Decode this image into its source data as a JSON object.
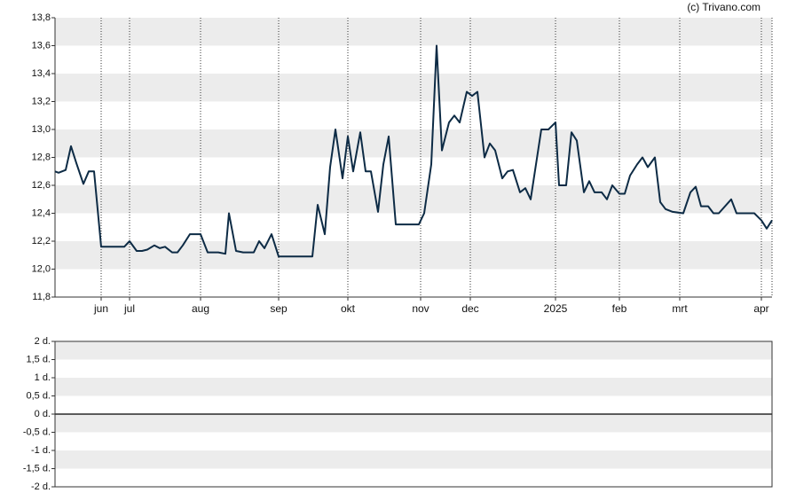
{
  "chart_data": [
    {
      "type": "line",
      "source": "(c) Trivano.com",
      "x": [
        0,
        2,
        6,
        9,
        12,
        16,
        19,
        22,
        26,
        29,
        39,
        42,
        46,
        49,
        52,
        56,
        59,
        62,
        66,
        69,
        72,
        76,
        82,
        86,
        92,
        96,
        98,
        102,
        106,
        112,
        115,
        118,
        122,
        126,
        145,
        148,
        152,
        155,
        158,
        162,
        165,
        168,
        172,
        175,
        178,
        182,
        185,
        188,
        192,
        205,
        208,
        212,
        215,
        218,
        222,
        225,
        228,
        232,
        235,
        238,
        242,
        245,
        248,
        252,
        255,
        258,
        262,
        265,
        268,
        274,
        278,
        282,
        284,
        288,
        291,
        294,
        298,
        301,
        304,
        308,
        311,
        314,
        318,
        321,
        324,
        328,
        331,
        334,
        338,
        341,
        344,
        348,
        354,
        358,
        361,
        364,
        368,
        371,
        374,
        381,
        384,
        394,
        398,
        401,
        404
      ],
      "series": [
        {
          "color": "#0d2b45",
          "values": [
            12.7,
            12.69,
            12.71,
            12.88,
            12.76,
            12.61,
            12.7,
            12.7,
            12.16,
            12.16,
            12.16,
            12.2,
            12.13,
            12.13,
            12.14,
            12.17,
            12.15,
            12.16,
            12.12,
            12.12,
            12.17,
            12.25,
            12.25,
            12.12,
            12.12,
            12.11,
            12.4,
            12.13,
            12.12,
            12.12,
            12.2,
            12.15,
            12.25,
            12.09,
            12.09,
            12.46,
            12.25,
            12.73,
            13.0,
            12.65,
            12.95,
            12.7,
            12.98,
            12.7,
            12.7,
            12.41,
            12.75,
            12.95,
            12.32,
            12.32,
            12.4,
            12.75,
            13.6,
            12.85,
            13.05,
            13.1,
            13.05,
            13.27,
            13.24,
            13.27,
            12.8,
            12.9,
            12.85,
            12.65,
            12.7,
            12.71,
            12.55,
            12.58,
            12.5,
            13.0,
            13.0,
            13.05,
            12.6,
            12.6,
            12.98,
            12.92,
            12.55,
            12.63,
            12.55,
            12.55,
            12.5,
            12.6,
            12.54,
            12.54,
            12.67,
            12.75,
            12.8,
            12.73,
            12.8,
            12.48,
            12.43,
            12.41,
            12.4,
            12.55,
            12.59,
            12.45,
            12.45,
            12.4,
            12.4,
            12.5,
            12.4,
            12.4,
            12.35,
            12.29,
            12.35
          ]
        }
      ],
      "xlim": [
        0,
        404
      ],
      "xticks": [
        {
          "value": 26,
          "label": "jun"
        },
        {
          "value": 42,
          "label": "jul"
        },
        {
          "value": 82,
          "label": "aug"
        },
        {
          "value": 126,
          "label": "sep"
        },
        {
          "value": 165,
          "label": "okt"
        },
        {
          "value": 206,
          "label": "nov"
        },
        {
          "value": 234,
          "label": "dec"
        },
        {
          "value": 282,
          "label": "2025"
        },
        {
          "value": 318,
          "label": "feb"
        },
        {
          "value": 352,
          "label": "mrt"
        },
        {
          "value": 398,
          "label": "apr"
        }
      ],
      "ylim": [
        11.8,
        13.8
      ],
      "yticks": [
        {
          "value": 11.8,
          "label": "11,8"
        },
        {
          "value": 12.0,
          "label": "12,0"
        },
        {
          "value": 12.2,
          "label": "12,2"
        },
        {
          "value": 12.4,
          "label": "12,4"
        },
        {
          "value": 12.6,
          "label": "12,6"
        },
        {
          "value": 12.8,
          "label": "12,8"
        },
        {
          "value": 13.0,
          "label": "13,0"
        },
        {
          "value": 13.2,
          "label": "13,2"
        },
        {
          "value": 13.4,
          "label": "13,4"
        },
        {
          "value": 13.6,
          "label": "13,6"
        },
        {
          "value": 13.8,
          "label": "13,8"
        }
      ],
      "grid": true
    },
    {
      "type": "line",
      "ylim": [
        -2,
        2
      ],
      "yticks": [
        {
          "value": -2,
          "label": "-2 d."
        },
        {
          "value": -1.5,
          "label": "-1,5 d."
        },
        {
          "value": -1,
          "label": "-1 d."
        },
        {
          "value": -0.5,
          "label": "-0,5 d."
        },
        {
          "value": 0,
          "label": "0 d."
        },
        {
          "value": 0.5,
          "label": "0,5 d."
        },
        {
          "value": 1,
          "label": "1 d."
        },
        {
          "value": 1.5,
          "label": "1,5 d."
        },
        {
          "value": 2,
          "label": "2 d."
        }
      ],
      "grid": true
    }
  ]
}
